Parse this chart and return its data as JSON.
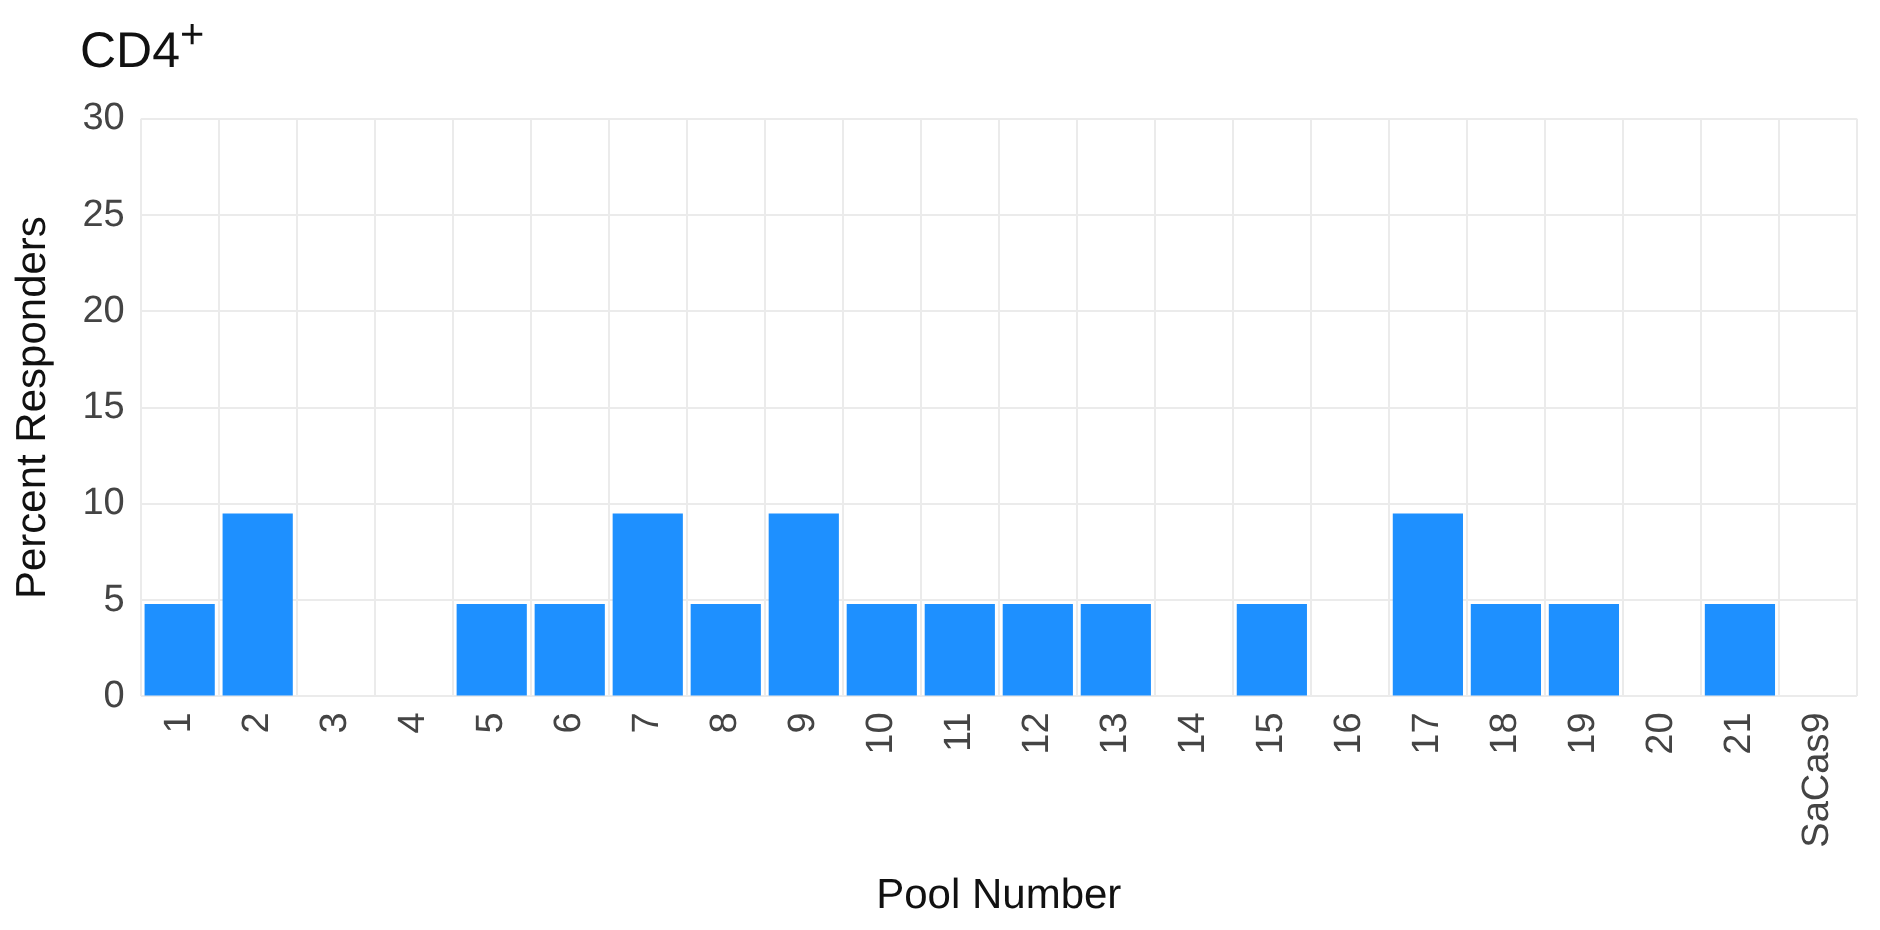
{
  "chart_data": {
    "type": "bar",
    "title": "CD4$^{+}$",
    "xlabel": "Pool Number",
    "ylabel": "Percent Responders",
    "categories": [
      "1",
      "2",
      "3",
      "4",
      "5",
      "6",
      "7",
      "8",
      "9",
      "10",
      "11",
      "12",
      "13",
      "14",
      "15",
      "16",
      "17",
      "18",
      "19",
      "20",
      "21",
      "SaCas9"
    ],
    "series": [
      {
        "color": "#1e90ff",
        "values": [
          4.8,
          9.5,
          0,
          0,
          4.8,
          4.8,
          9.5,
          4.8,
          9.5,
          4.8,
          4.8,
          4.8,
          4.8,
          0,
          4.8,
          0,
          9.5,
          4.8,
          4.8,
          0,
          4.8,
          0
        ]
      }
    ],
    "ylim": [
      0,
      30
    ],
    "yticks": [
      0,
      5,
      10,
      15,
      20,
      25,
      30
    ],
    "grid": true,
    "legend": false
  }
}
